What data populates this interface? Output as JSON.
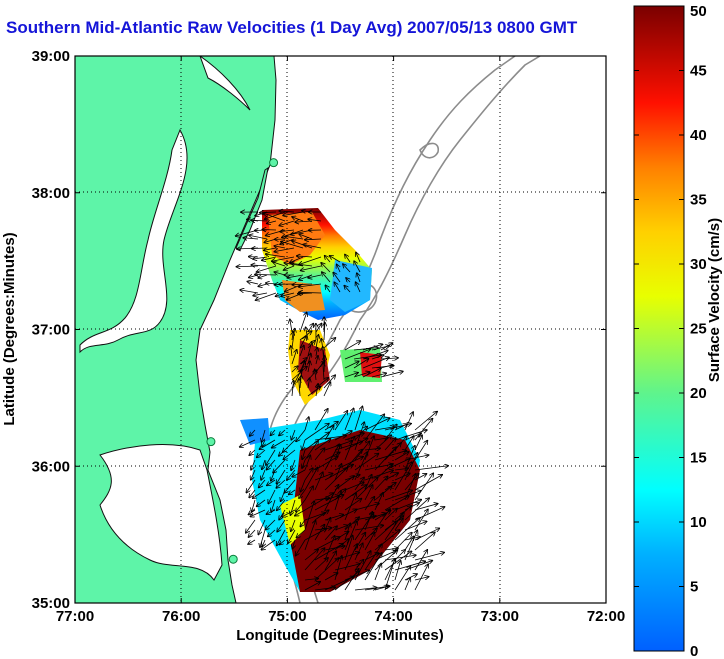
{
  "chart_data": {
    "type": "heatmap",
    "title": "Southern Mid-Atlantic Raw Velocities (1 Day Avg) 2007/05/13 0800 GMT",
    "xlabel": "Longitude (Degrees:Minutes)",
    "ylabel": "Latitude (Degrees:Minutes)",
    "x_ticks": [
      "77:00",
      "76:00",
      "75:00",
      "74:00",
      "73:00",
      "72:00"
    ],
    "y_ticks": [
      "39:00",
      "38:00",
      "37:00",
      "36:00",
      "35:00"
    ],
    "xlim": [
      -77,
      -72
    ],
    "ylim": [
      35,
      39
    ],
    "grid": true,
    "colorbar": {
      "label": "Surface Velocity (cm/s)",
      "range": [
        0,
        50
      ],
      "ticks": [
        "0",
        "5",
        "10",
        "15",
        "20",
        "25",
        "30",
        "35",
        "40",
        "45",
        "50"
      ]
    },
    "colors": {
      "land": "#5ef4a8",
      "water": "#ffffff",
      "title": "#1515d8",
      "bathymetry": "#8c8c8c",
      "arrows": "#000000"
    },
    "fields": [
      {
        "lon": -74.85,
        "lat": 37.55,
        "speed": 36
      },
      {
        "lon": -74.6,
        "lat": 37.2,
        "speed": 16
      },
      {
        "lon": -74.75,
        "lat": 36.7,
        "speed": 44
      },
      {
        "lon": -74.0,
        "lat": 36.7,
        "speed": 22
      },
      {
        "lon": -74.7,
        "lat": 36.0,
        "speed": 12
      },
      {
        "lon": -74.15,
        "lat": 35.7,
        "speed": 50
      }
    ],
    "stations": [
      {
        "lon": -75.13,
        "lat": 38.22
      },
      {
        "lon": -75.72,
        "lat": 36.18
      },
      {
        "lon": -75.51,
        "lat": 35.32
      }
    ]
  }
}
